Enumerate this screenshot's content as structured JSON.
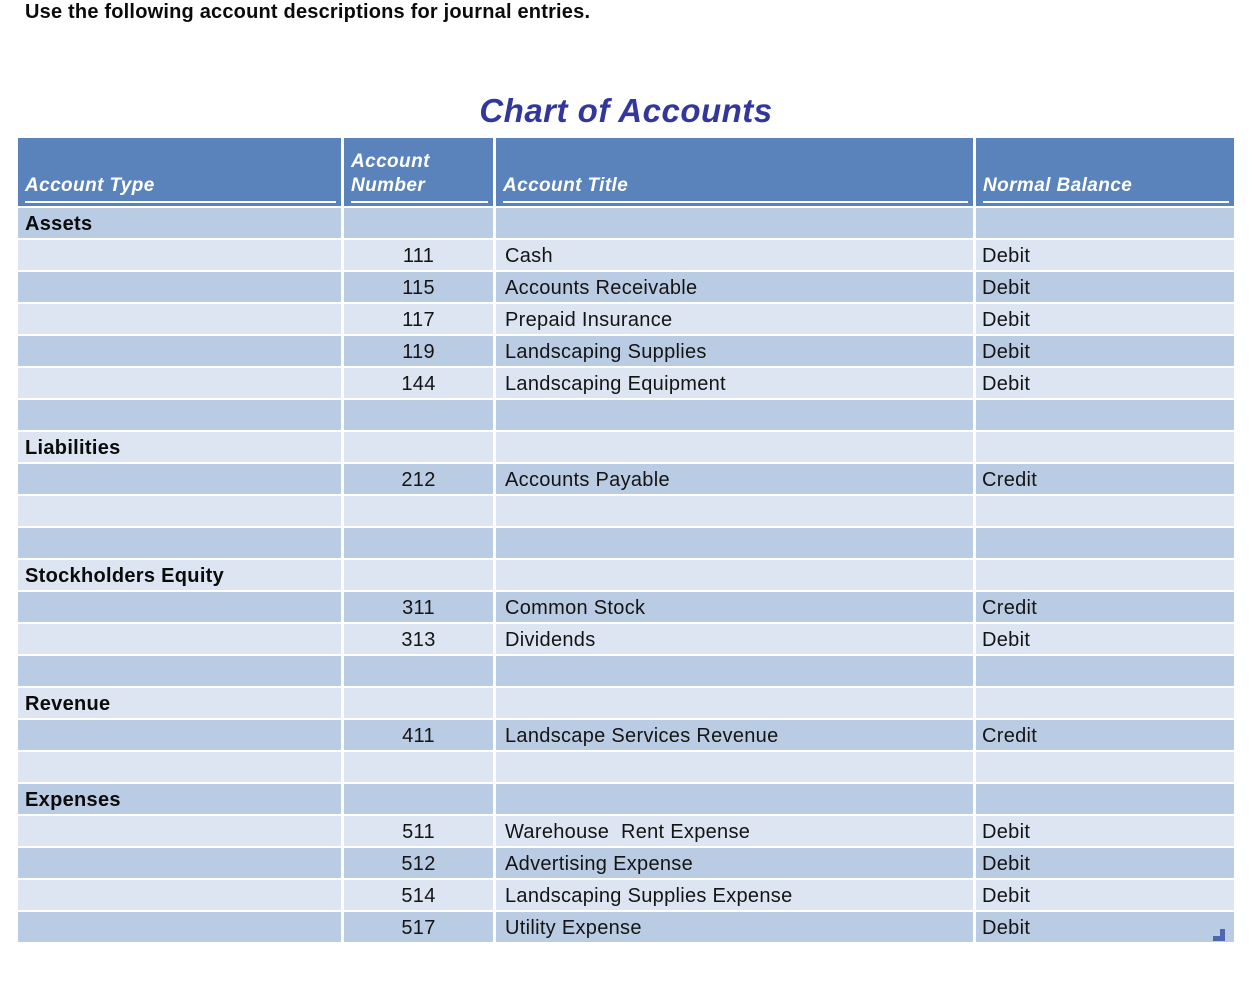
{
  "page": {
    "instruction": "Use the following account descriptions for journal entries.",
    "title": "Chart of Accounts"
  },
  "table": {
    "columns": [
      {
        "label": "Account Type"
      },
      {
        "label": "Account Number"
      },
      {
        "label": "Account Title"
      },
      {
        "label": "Normal Balance"
      }
    ],
    "rows": [
      {
        "section": true,
        "account_type": "Assets",
        "account_number": "",
        "account_title": "",
        "normal_balance": ""
      },
      {
        "section": false,
        "account_type": "",
        "account_number": "111",
        "account_title": "Cash",
        "normal_balance": "Debit"
      },
      {
        "section": false,
        "account_type": "",
        "account_number": "115",
        "account_title": "Accounts Receivable",
        "normal_balance": "Debit"
      },
      {
        "section": false,
        "account_type": "",
        "account_number": "117",
        "account_title": "Prepaid Insurance",
        "normal_balance": "Debit"
      },
      {
        "section": false,
        "account_type": "",
        "account_number": "119",
        "account_title": "Landscaping Supplies",
        "normal_balance": "Debit"
      },
      {
        "section": false,
        "account_type": "",
        "account_number": "144",
        "account_title": "Landscaping Equipment",
        "normal_balance": "Debit"
      },
      {
        "section": false,
        "account_type": "",
        "account_number": "",
        "account_title": "",
        "normal_balance": ""
      },
      {
        "section": true,
        "account_type": "Liabilities",
        "account_number": "",
        "account_title": "",
        "normal_balance": ""
      },
      {
        "section": false,
        "account_type": "",
        "account_number": "212",
        "account_title": "Accounts Payable",
        "normal_balance": "Credit"
      },
      {
        "section": false,
        "account_type": "",
        "account_number": "",
        "account_title": "",
        "normal_balance": ""
      },
      {
        "section": false,
        "account_type": "",
        "account_number": "",
        "account_title": "",
        "normal_balance": ""
      },
      {
        "section": true,
        "account_type": "Stockholders Equity",
        "account_number": "",
        "account_title": "",
        "normal_balance": ""
      },
      {
        "section": false,
        "account_type": "",
        "account_number": "311",
        "account_title": "Common Stock",
        "normal_balance": "Credit"
      },
      {
        "section": false,
        "account_type": "",
        "account_number": "313",
        "account_title": "Dividends",
        "normal_balance": "Debit"
      },
      {
        "section": false,
        "account_type": "",
        "account_number": "",
        "account_title": "",
        "normal_balance": ""
      },
      {
        "section": true,
        "account_type": "Revenue",
        "account_number": "",
        "account_title": "",
        "normal_balance": ""
      },
      {
        "section": false,
        "account_type": "",
        "account_number": "411",
        "account_title": "Landscape Services Revenue",
        "normal_balance": "Credit"
      },
      {
        "section": false,
        "account_type": "",
        "account_number": "",
        "account_title": "",
        "normal_balance": ""
      },
      {
        "section": true,
        "account_type": "Expenses",
        "account_number": "",
        "account_title": "",
        "normal_balance": ""
      },
      {
        "section": false,
        "account_type": "",
        "account_number": "511",
        "account_title": "Warehouse  Rent Expense",
        "normal_balance": "Debit"
      },
      {
        "section": false,
        "account_type": "",
        "account_number": "512",
        "account_title": "Advertising Expense",
        "normal_balance": "Debit"
      },
      {
        "section": false,
        "account_type": "",
        "account_number": "514",
        "account_title": "Landscaping Supplies Expense",
        "normal_balance": "Debit"
      },
      {
        "section": false,
        "account_type": "",
        "account_number": "517",
        "account_title": "Utility Expense",
        "normal_balance": "Debit"
      }
    ]
  },
  "colors": {
    "header_bg": "#5A83BC",
    "band_dark": "#B9CCE3",
    "band_light": "#DCE5F1",
    "title_text": "#32389B",
    "header_text": "#FFFFFF",
    "body_text": "#141414",
    "grid_line": "#FFFFFF",
    "resize_handle": "#4E68B0"
  },
  "icons": {
    "table_resize_handle": "table-resize-handle-icon"
  }
}
